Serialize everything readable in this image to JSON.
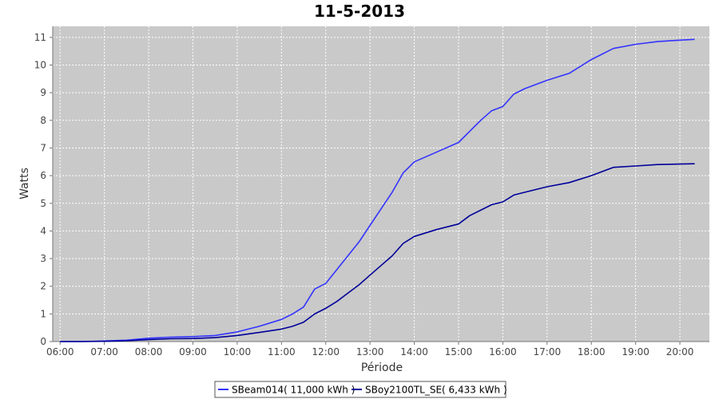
{
  "chart_data": {
    "type": "line",
    "title": "11-5-2013",
    "xlabel": "Période",
    "ylabel": "Watts",
    "ylim": [
      0,
      11.4
    ],
    "xlim": [
      "05:50",
      "20:40"
    ],
    "grid": true,
    "legend_position": "bottom",
    "x_ticks": [
      "06:00",
      "07:00",
      "08:00",
      "09:00",
      "10:00",
      "11:00",
      "12:00",
      "13:00",
      "14:00",
      "15:00",
      "16:00",
      "17:00",
      "18:00",
      "19:00",
      "20:00"
    ],
    "y_ticks": [
      0,
      1,
      2,
      3,
      4,
      5,
      6,
      7,
      8,
      9,
      10,
      11
    ],
    "series": [
      {
        "name": "SBeam014( 11,000 kWh )",
        "color": "#3333ff",
        "x": [
          "06:00",
          "06:30",
          "07:00",
          "07:30",
          "08:00",
          "08:30",
          "09:00",
          "09:30",
          "10:00",
          "10:30",
          "11:00",
          "11:15",
          "11:30",
          "11:45",
          "12:00",
          "12:15",
          "12:30",
          "12:45",
          "13:00",
          "13:15",
          "13:30",
          "13:45",
          "14:00",
          "14:30",
          "15:00",
          "15:15",
          "15:30",
          "15:45",
          "16:00",
          "16:15",
          "16:30",
          "17:00",
          "17:30",
          "18:00",
          "18:30",
          "19:00",
          "19:30",
          "20:00",
          "20:20"
        ],
        "values": [
          0,
          0,
          0.02,
          0.05,
          0.12,
          0.16,
          0.18,
          0.22,
          0.35,
          0.55,
          0.8,
          1.0,
          1.25,
          1.9,
          2.1,
          2.6,
          3.1,
          3.6,
          4.2,
          4.8,
          5.4,
          6.1,
          6.5,
          6.85,
          7.2,
          7.6,
          8.0,
          8.35,
          8.5,
          8.95,
          9.15,
          9.45,
          9.7,
          10.2,
          10.6,
          10.75,
          10.85,
          10.9,
          10.93
        ]
      },
      {
        "name": "SBoy2100TL_SE( 6,433 kWh )",
        "color": "#000099",
        "x": [
          "06:00",
          "06:30",
          "07:00",
          "07:30",
          "08:00",
          "08:30",
          "09:00",
          "09:30",
          "10:00",
          "10:30",
          "11:00",
          "11:15",
          "11:30",
          "11:45",
          "12:00",
          "12:15",
          "12:30",
          "12:45",
          "13:00",
          "13:15",
          "13:30",
          "13:45",
          "14:00",
          "14:30",
          "15:00",
          "15:15",
          "15:30",
          "15:45",
          "16:00",
          "16:15",
          "16:30",
          "17:00",
          "17:30",
          "18:00",
          "18:30",
          "19:00",
          "19:30",
          "20:00",
          "20:20"
        ],
        "values": [
          0,
          0,
          0.01,
          0.03,
          0.07,
          0.1,
          0.11,
          0.14,
          0.22,
          0.33,
          0.45,
          0.55,
          0.7,
          1.0,
          1.2,
          1.45,
          1.75,
          2.05,
          2.4,
          2.75,
          3.1,
          3.55,
          3.8,
          4.05,
          4.25,
          4.55,
          4.75,
          4.95,
          5.05,
          5.3,
          5.4,
          5.6,
          5.75,
          6.0,
          6.3,
          6.35,
          6.4,
          6.42,
          6.43
        ]
      }
    ]
  }
}
